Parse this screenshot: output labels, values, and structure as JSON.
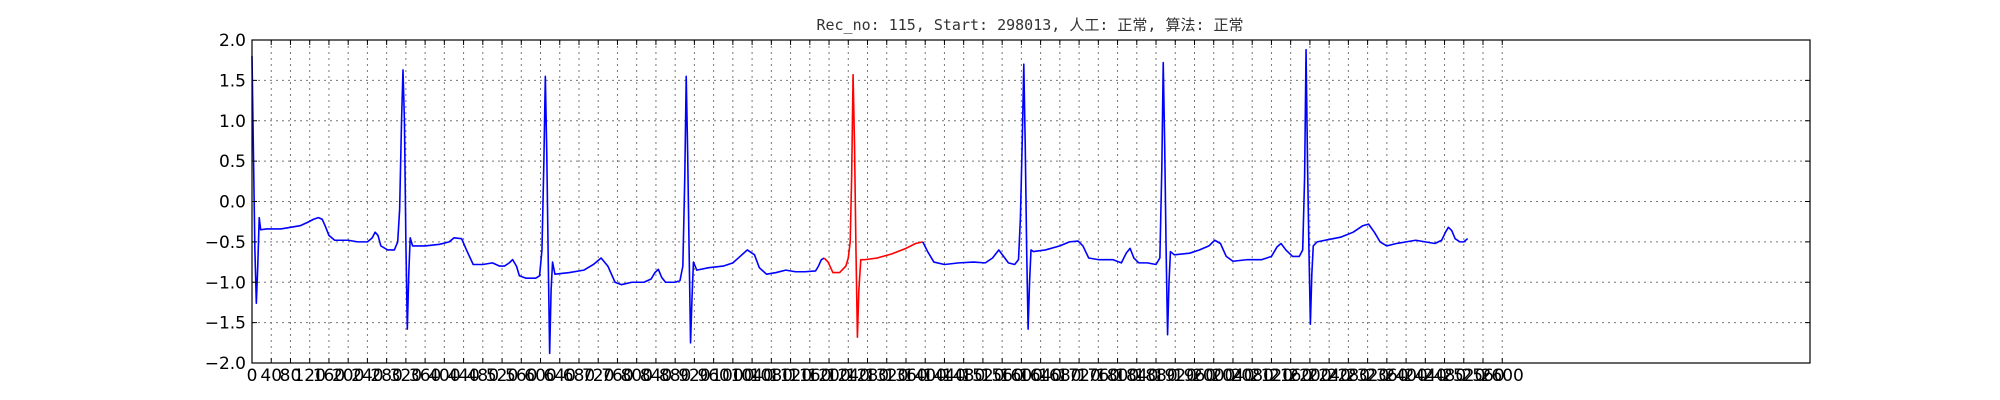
{
  "chart_data": {
    "type": "line",
    "title": "Rec_no: 115, Start: 298013, 人工: 正常, 算法: 正常",
    "xlabel": "",
    "ylabel": "",
    "xlim": [
      0,
      3240
    ],
    "ylim": [
      -2.0,
      2.0
    ],
    "grid": true,
    "legend": "none",
    "x_ticks": [
      0,
      40,
      80,
      120,
      160,
      200,
      240,
      280,
      320,
      360,
      400,
      440,
      480,
      520,
      560,
      600,
      640,
      680,
      720,
      760,
      800,
      840,
      880,
      920,
      960,
      1000,
      1040,
      1080,
      1120,
      1160,
      1200,
      1240,
      1280,
      1320,
      1360,
      1400,
      1440,
      1480,
      1520,
      1560,
      1600,
      1640,
      1680,
      1720,
      1760,
      1800,
      1840,
      1880,
      1920,
      1960,
      2000,
      2040,
      2080,
      2120,
      2160,
      2200,
      2240,
      2280,
      2320,
      2360,
      2400,
      2440,
      2480,
      2520,
      2560,
      2600
    ],
    "x_tick_labels": [
      "0",
      "40",
      "80",
      "120",
      "160",
      "200",
      "240",
      "280",
      "320",
      "360",
      "400",
      "440",
      "480",
      "520",
      "560",
      "600",
      "640",
      "680",
      "720",
      "760",
      "800",
      "840",
      "880",
      "920",
      "960",
      "1000",
      "1040",
      "1080",
      "1120",
      "1160",
      "1200",
      "1240",
      "1280",
      "1320",
      "1360",
      "1400",
      "1440",
      "1480",
      "1520",
      "1560",
      "1600",
      "1640",
      "1680",
      "1720",
      "1760",
      "1800",
      "1840",
      "1880",
      "1920",
      "1960",
      "2000",
      "2040",
      "2080",
      "2120",
      "2160",
      "2200",
      "2240",
      "2280",
      "2320",
      "2360",
      "2400",
      "2440",
      "2480",
      "2520",
      "2560",
      "2600"
    ],
    "y_ticks": [
      2.0,
      1.5,
      1.0,
      0.5,
      0.0,
      -0.5,
      -1.0,
      -1.5,
      -2.0
    ],
    "y_tick_labels": [
      "2.0",
      "1.5",
      "1.0",
      "0.5",
      "0.0",
      "−0.5",
      "−1.0",
      "−1.5",
      "−2.0"
    ],
    "colors": {
      "normal": "#0000ff",
      "highlight": "#ff0000"
    },
    "series": [
      {
        "color": "#0000ff",
        "points": [
          [
            0,
            1.8
          ],
          [
            3,
            0.6
          ],
          [
            6,
            -0.6
          ],
          [
            9,
            -1.26
          ],
          [
            12,
            -0.8
          ],
          [
            15,
            -0.2
          ],
          [
            18,
            -0.35
          ],
          [
            30,
            -0.34
          ],
          [
            60,
            -0.34
          ],
          [
            80,
            -0.32
          ],
          [
            100,
            -0.3
          ],
          [
            115,
            -0.26
          ],
          [
            128,
            -0.22
          ],
          [
            138,
            -0.2
          ],
          [
            146,
            -0.22
          ],
          [
            152,
            -0.3
          ],
          [
            160,
            -0.42
          ],
          [
            172,
            -0.48
          ],
          [
            200,
            -0.48
          ],
          [
            220,
            -0.5
          ],
          [
            240,
            -0.5
          ],
          [
            250,
            -0.45
          ],
          [
            256,
            -0.38
          ],
          [
            262,
            -0.42
          ],
          [
            268,
            -0.55
          ],
          [
            282,
            -0.6
          ],
          [
            296,
            -0.6
          ],
          [
            303,
            -0.5
          ],
          [
            307,
            -0.1
          ],
          [
            311,
            1.0
          ],
          [
            314,
            1.63
          ],
          [
            317,
            1.0
          ],
          [
            320,
            -0.5
          ],
          [
            323,
            -1.58
          ],
          [
            326,
            -0.9
          ],
          [
            329,
            -0.45
          ],
          [
            334,
            -0.55
          ],
          [
            360,
            -0.55
          ],
          [
            390,
            -0.53
          ],
          [
            410,
            -0.5
          ],
          [
            420,
            -0.45
          ],
          [
            436,
            -0.46
          ],
          [
            446,
            -0.6
          ],
          [
            460,
            -0.78
          ],
          [
            480,
            -0.78
          ],
          [
            500,
            -0.76
          ],
          [
            515,
            -0.8
          ],
          [
            525,
            -0.8
          ],
          [
            535,
            -0.76
          ],
          [
            542,
            -0.72
          ],
          [
            550,
            -0.8
          ],
          [
            556,
            -0.92
          ],
          [
            570,
            -0.95
          ],
          [
            590,
            -0.95
          ],
          [
            598,
            -0.92
          ],
          [
            603,
            -0.6
          ],
          [
            607,
            0.5
          ],
          [
            610,
            1.55
          ],
          [
            613,
            0.6
          ],
          [
            616,
            -0.7
          ],
          [
            619,
            -1.88
          ],
          [
            622,
            -1.1
          ],
          [
            625,
            -0.75
          ],
          [
            630,
            -0.9
          ],
          [
            660,
            -0.88
          ],
          [
            690,
            -0.85
          ],
          [
            710,
            -0.78
          ],
          [
            726,
            -0.7
          ],
          [
            740,
            -0.8
          ],
          [
            755,
            -1.0
          ],
          [
            768,
            -1.03
          ],
          [
            790,
            -1.0
          ],
          [
            815,
            -1.0
          ],
          [
            830,
            -0.96
          ],
          [
            838,
            -0.88
          ],
          [
            845,
            -0.84
          ],
          [
            852,
            -0.94
          ],
          [
            860,
            -1.0
          ],
          [
            880,
            -1.0
          ],
          [
            890,
            -0.98
          ],
          [
            896,
            -0.8
          ],
          [
            900,
            0.3
          ],
          [
            903,
            1.55
          ],
          [
            906,
            0.6
          ],
          [
            909,
            -0.6
          ],
          [
            912,
            -1.75
          ],
          [
            915,
            -1.2
          ],
          [
            918,
            -0.75
          ],
          [
            925,
            -0.85
          ],
          [
            950,
            -0.82
          ],
          [
            980,
            -0.8
          ],
          [
            1000,
            -0.76
          ],
          [
            1015,
            -0.68
          ],
          [
            1030,
            -0.6
          ],
          [
            1045,
            -0.66
          ],
          [
            1055,
            -0.82
          ],
          [
            1070,
            -0.9
          ],
          [
            1090,
            -0.88
          ],
          [
            1110,
            -0.85
          ],
          [
            1130,
            -0.87
          ],
          [
            1150,
            -0.87
          ],
          [
            1172,
            -0.86
          ],
          [
            1178,
            -0.8
          ],
          [
            1184,
            -0.72
          ],
          [
            1190,
            -0.7
          ]
        ]
      },
      {
        "color": "#ff0000",
        "points": [
          [
            1190,
            -0.7
          ],
          [
            1198,
            -0.75
          ],
          [
            1208,
            -0.88
          ],
          [
            1222,
            -0.88
          ],
          [
            1235,
            -0.8
          ],
          [
            1240,
            -0.7
          ],
          [
            1244,
            -0.5
          ],
          [
            1247,
            0.3
          ],
          [
            1250,
            1.57
          ],
          [
            1253,
            0.7
          ],
          [
            1256,
            -0.6
          ],
          [
            1259,
            -1.68
          ],
          [
            1262,
            -1.1
          ],
          [
            1266,
            -0.72
          ],
          [
            1275,
            -0.72
          ],
          [
            1300,
            -0.7
          ],
          [
            1330,
            -0.65
          ],
          [
            1360,
            -0.58
          ],
          [
            1380,
            -0.52
          ],
          [
            1395,
            -0.5
          ]
        ]
      },
      {
        "color": "#0000ff",
        "points": [
          [
            1395,
            -0.5
          ],
          [
            1405,
            -0.62
          ],
          [
            1418,
            -0.75
          ],
          [
            1440,
            -0.78
          ],
          [
            1470,
            -0.76
          ],
          [
            1500,
            -0.75
          ],
          [
            1525,
            -0.76
          ],
          [
            1540,
            -0.7
          ],
          [
            1553,
            -0.6
          ],
          [
            1563,
            -0.68
          ],
          [
            1573,
            -0.76
          ],
          [
            1586,
            -0.78
          ],
          [
            1594,
            -0.72
          ],
          [
            1598,
            -0.2
          ],
          [
            1602,
            0.8
          ],
          [
            1605,
            1.7
          ],
          [
            1608,
            0.7
          ],
          [
            1611,
            -0.6
          ],
          [
            1614,
            -1.58
          ],
          [
            1617,
            -1.0
          ],
          [
            1620,
            -0.6
          ],
          [
            1625,
            -0.62
          ],
          [
            1650,
            -0.6
          ],
          [
            1680,
            -0.55
          ],
          [
            1700,
            -0.5
          ],
          [
            1718,
            -0.49
          ],
          [
            1728,
            -0.55
          ],
          [
            1740,
            -0.7
          ],
          [
            1760,
            -0.72
          ],
          [
            1790,
            -0.72
          ],
          [
            1808,
            -0.76
          ],
          [
            1818,
            -0.64
          ],
          [
            1826,
            -0.58
          ],
          [
            1834,
            -0.7
          ],
          [
            1844,
            -0.76
          ],
          [
            1862,
            -0.76
          ],
          [
            1880,
            -0.78
          ],
          [
            1888,
            -0.7
          ],
          [
            1892,
            0.4
          ],
          [
            1895,
            1.72
          ],
          [
            1898,
            0.7
          ],
          [
            1901,
            -0.6
          ],
          [
            1904,
            -1.65
          ],
          [
            1907,
            -1.0
          ],
          [
            1910,
            -0.62
          ],
          [
            1918,
            -0.66
          ],
          [
            1950,
            -0.64
          ],
          [
            1970,
            -0.6
          ],
          [
            1990,
            -0.55
          ],
          [
            2002,
            -0.48
          ],
          [
            2014,
            -0.52
          ],
          [
            2026,
            -0.68
          ],
          [
            2040,
            -0.74
          ],
          [
            2070,
            -0.72
          ],
          [
            2100,
            -0.72
          ],
          [
            2120,
            -0.68
          ],
          [
            2132,
            -0.56
          ],
          [
            2140,
            -0.52
          ],
          [
            2150,
            -0.6
          ],
          [
            2164,
            -0.68
          ],
          [
            2178,
            -0.68
          ],
          [
            2185,
            -0.6
          ],
          [
            2189,
            0.3
          ],
          [
            2192,
            1.88
          ],
          [
            2195,
            0.5
          ],
          [
            2198,
            -0.6
          ],
          [
            2201,
            -1.52
          ],
          [
            2204,
            -0.9
          ],
          [
            2207,
            -0.55
          ],
          [
            2215,
            -0.5
          ],
          [
            2240,
            -0.47
          ],
          [
            2265,
            -0.44
          ],
          [
            2290,
            -0.38
          ],
          [
            2310,
            -0.3
          ],
          [
            2322,
            -0.28
          ],
          [
            2334,
            -0.38
          ],
          [
            2346,
            -0.5
          ],
          [
            2360,
            -0.55
          ],
          [
            2380,
            -0.52
          ],
          [
            2400,
            -0.5
          ],
          [
            2420,
            -0.48
          ],
          [
            2440,
            -0.5
          ],
          [
            2460,
            -0.52
          ],
          [
            2474,
            -0.48
          ],
          [
            2482,
            -0.38
          ],
          [
            2488,
            -0.32
          ],
          [
            2495,
            -0.36
          ],
          [
            2502,
            -0.46
          ],
          [
            2512,
            -0.5
          ],
          [
            2520,
            -0.5
          ],
          [
            2528,
            -0.46
          ]
        ]
      }
    ]
  }
}
